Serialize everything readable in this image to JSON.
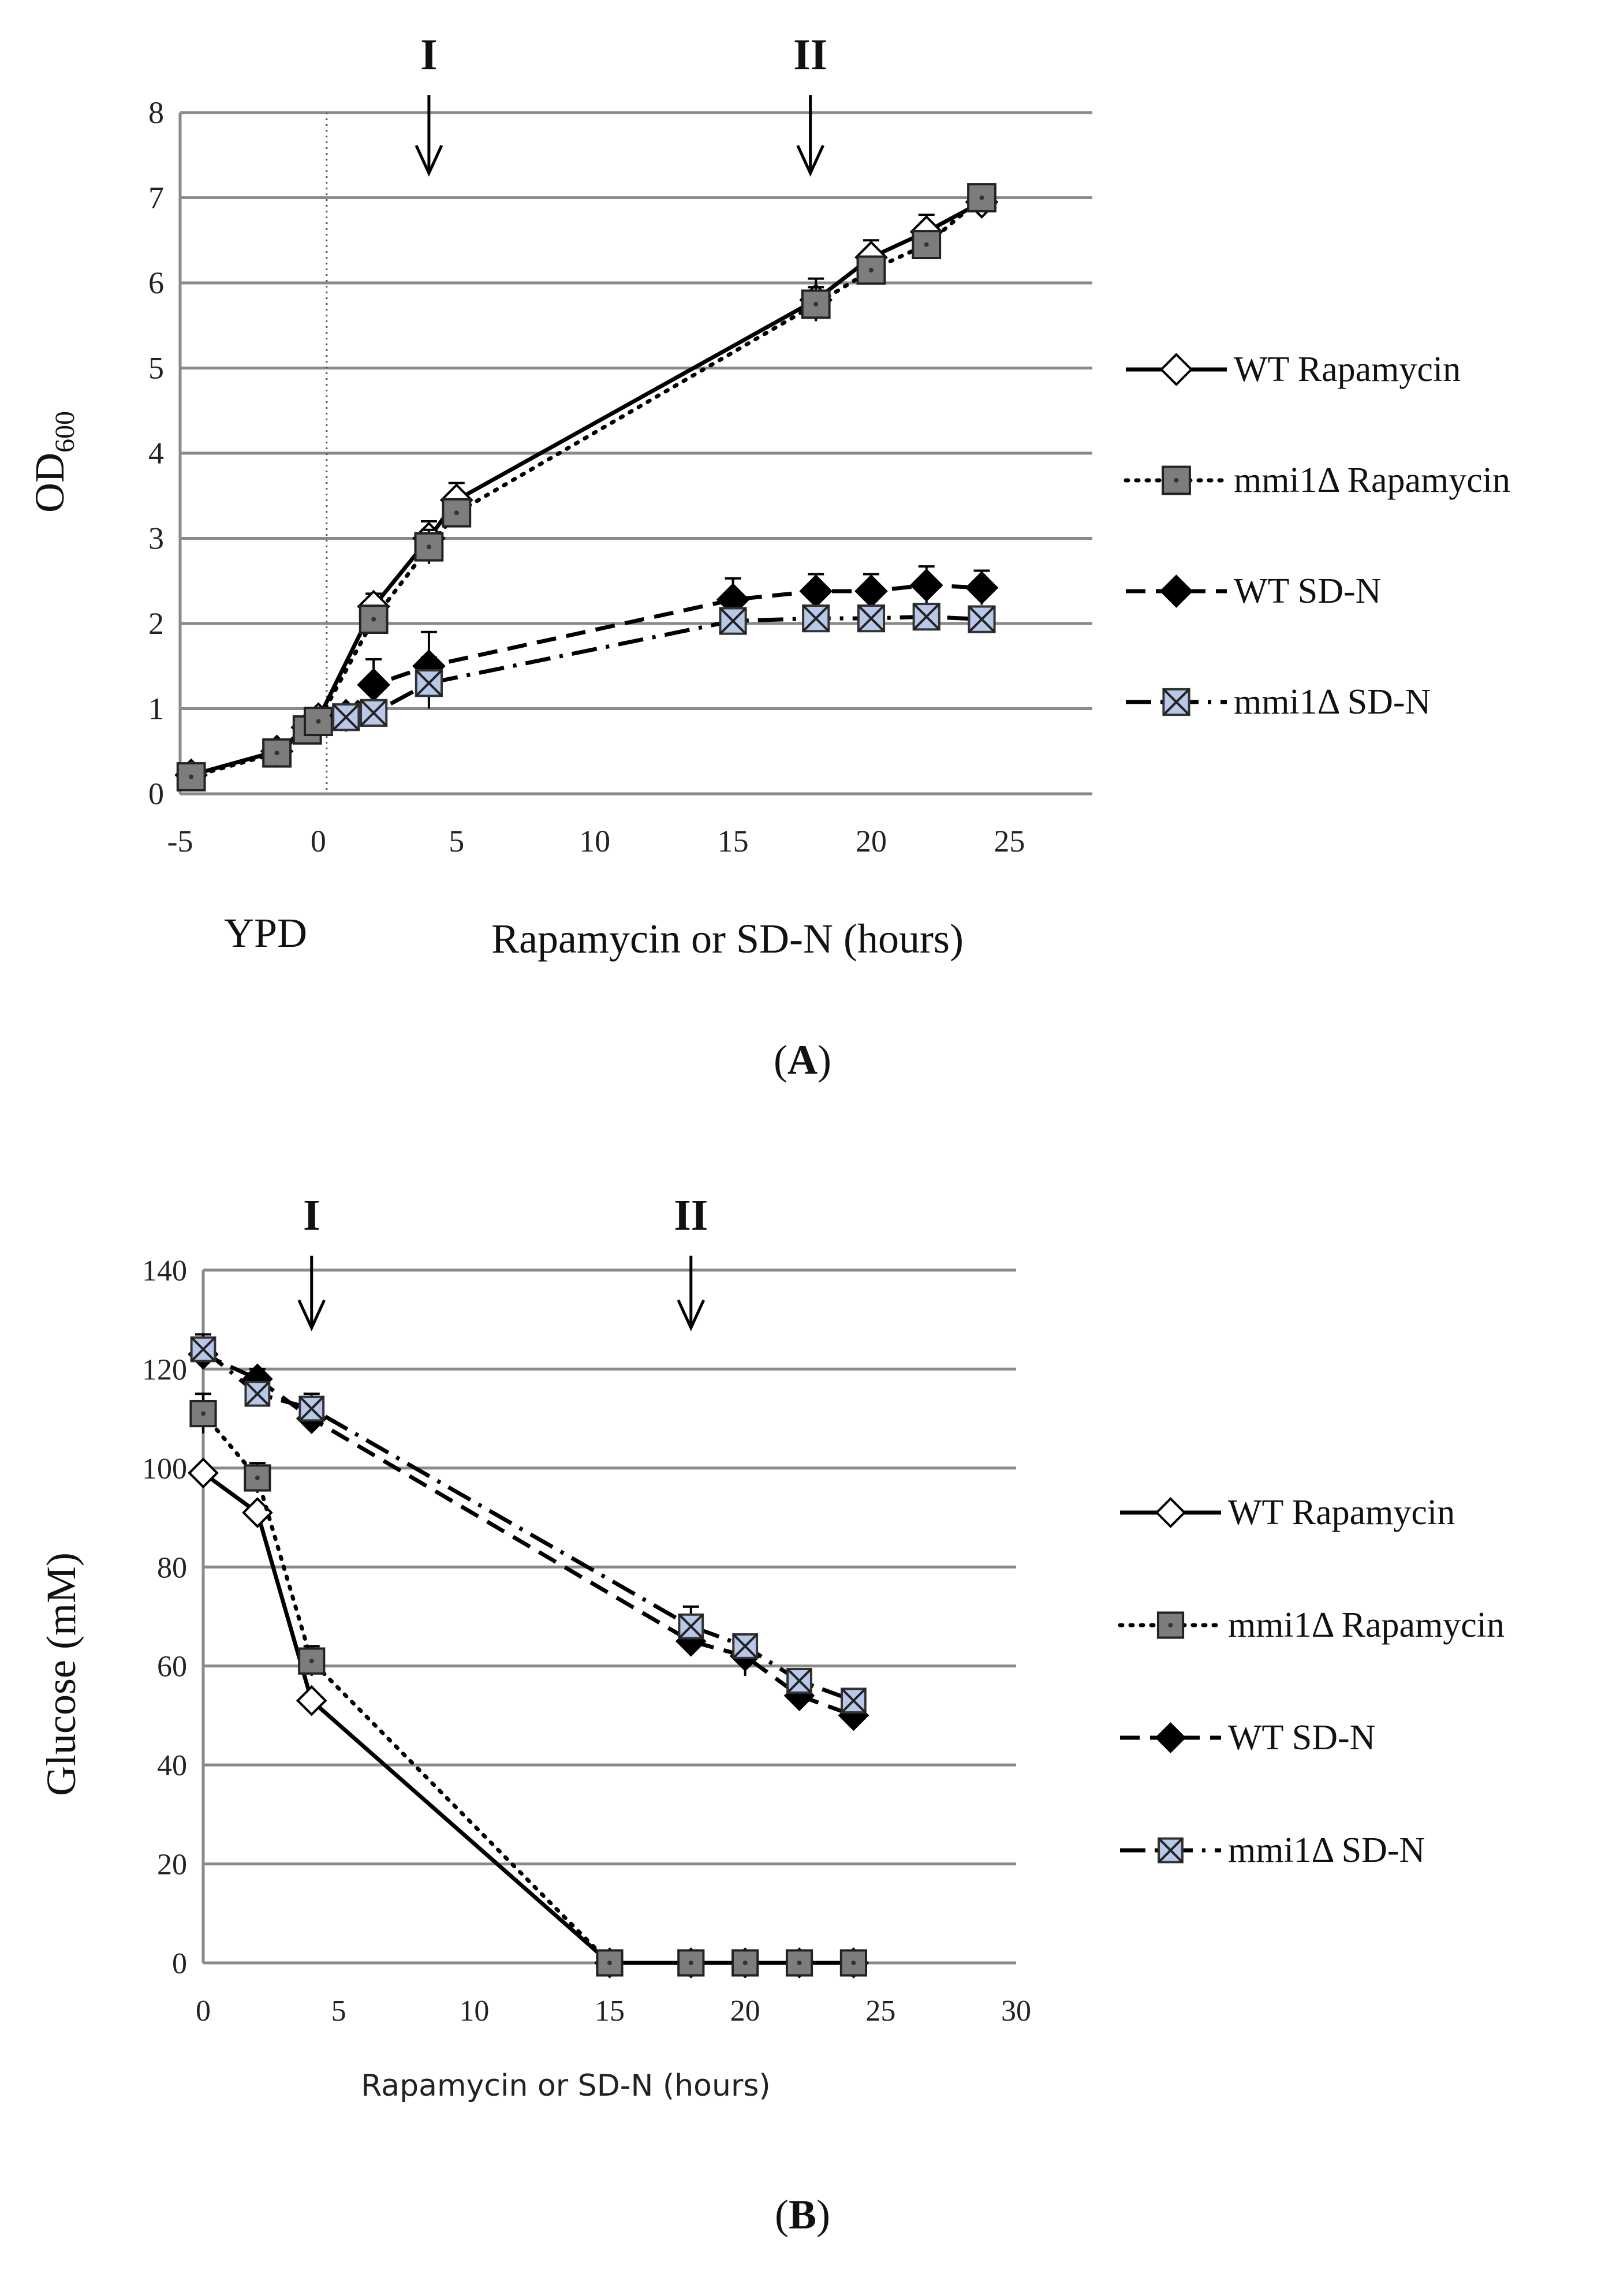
{
  "colors": {
    "grid": "#8a8a8a",
    "axis": "#8a8a8a",
    "line": "#000000",
    "square_marker": "#7d7d7d",
    "cross_marker_fill": "#b8c8e8",
    "diamond_open": "#ffffff",
    "diamond_filled": "#000000"
  },
  "chart_data": [
    {
      "panel": "A",
      "type": "line",
      "ylabel": "OD",
      "ylabel_subscript": "600",
      "xlabel": "Rapamycin or SD-N (hours)",
      "xlabel_left": "YPD",
      "xlim": [
        -5,
        28
      ],
      "ylim": [
        0,
        8
      ],
      "xticks": [
        -5,
        0,
        5,
        10,
        15,
        20,
        25
      ],
      "yticks": [
        0,
        1,
        2,
        3,
        4,
        5,
        6,
        7,
        8
      ],
      "grid": true,
      "vline_at": 0.3,
      "arrows": [
        {
          "label": "I",
          "x": 4
        },
        {
          "label": "II",
          "x": 17.8
        }
      ],
      "legend_position": "right",
      "series": [
        {
          "name": "WT Rapamycin",
          "style": "solid",
          "marker": "diamond-open",
          "x": [
            -4.6,
            -1.5,
            -0.4,
            0,
            2,
            4,
            5,
            18,
            20,
            22,
            24
          ],
          "y": [
            0.22,
            0.5,
            0.78,
            0.88,
            2.2,
            3.0,
            3.45,
            5.8,
            6.3,
            6.6,
            6.95
          ],
          "err": [
            0.05,
            0.05,
            0.08,
            0.1,
            0.15,
            0.2,
            0.2,
            0.25,
            0.2,
            0.2,
            0.1
          ]
        },
        {
          "name": "mmi1Δ Rapamycin",
          "style": "dotted",
          "marker": "square",
          "x": [
            -4.6,
            -1.5,
            -0.4,
            0,
            2,
            4,
            5,
            18,
            20,
            22,
            24
          ],
          "y": [
            0.2,
            0.48,
            0.75,
            0.85,
            2.05,
            2.9,
            3.3,
            5.75,
            6.15,
            6.45,
            7.0
          ],
          "err": [
            0.05,
            0.05,
            0.05,
            0.08,
            0.1,
            0.2,
            0.15,
            0.2,
            0.15,
            0.15,
            0.1
          ]
        },
        {
          "name": "WT SD-N",
          "style": "dashed",
          "marker": "diamond-filled",
          "x": [
            1,
            2,
            4,
            15,
            18,
            20,
            22,
            24
          ],
          "y": [
            0.92,
            1.28,
            1.5,
            2.28,
            2.38,
            2.38,
            2.45,
            2.42
          ],
          "err": [
            0.1,
            0.3,
            0.4,
            0.25,
            0.2,
            0.2,
            0.22,
            0.2
          ]
        },
        {
          "name": "mmi1Δ SD-N",
          "style": "dashdot",
          "marker": "square-cross",
          "x": [
            1,
            2,
            4,
            15,
            18,
            20,
            22,
            24
          ],
          "y": [
            0.9,
            0.95,
            1.3,
            2.03,
            2.06,
            2.06,
            2.08,
            2.05
          ],
          "err": [
            0.08,
            0.1,
            0.3,
            0.1,
            0.1,
            0.1,
            0.1,
            0.1
          ]
        }
      ],
      "caption": "A"
    },
    {
      "panel": "B",
      "type": "line",
      "ylabel": "Glucose (mM)",
      "xlabel": "Rapamycin or SD-N (hours)",
      "xlim": [
        0,
        30
      ],
      "ylim": [
        0,
        140
      ],
      "xticks": [
        0,
        5,
        10,
        15,
        20,
        25,
        30
      ],
      "yticks": [
        0,
        20,
        40,
        60,
        80,
        100,
        120,
        140
      ],
      "grid": true,
      "arrows": [
        {
          "label": "I",
          "x": 4
        },
        {
          "label": "II",
          "x": 18
        }
      ],
      "legend_position": "right",
      "series": [
        {
          "name": "WT Rapamycin",
          "style": "solid",
          "marker": "diamond-open",
          "x": [
            0,
            2,
            4,
            15,
            18,
            20,
            22,
            24
          ],
          "y": [
            99,
            91,
            53,
            0,
            0,
            0,
            0,
            0
          ],
          "err": [
            0,
            0,
            0,
            0,
            0,
            0,
            0,
            0
          ]
        },
        {
          "name": "mmi1Δ Rapamycin",
          "style": "dotted",
          "marker": "square",
          "x": [
            0,
            2,
            4,
            15,
            18,
            20,
            22,
            24
          ],
          "y": [
            111,
            98,
            61,
            0,
            0,
            0,
            0,
            0
          ],
          "err": [
            4,
            3,
            3,
            0,
            0,
            0,
            0,
            0
          ]
        },
        {
          "name": "WT SD-N",
          "style": "dashed",
          "marker": "diamond-filled",
          "x": [
            0,
            2,
            4,
            18,
            20,
            22,
            24
          ],
          "y": [
            123,
            118,
            110,
            65,
            62,
            54,
            50
          ],
          "err": [
            3,
            2,
            2,
            3,
            4,
            2,
            2
          ]
        },
        {
          "name": "mmi1Δ SD-N",
          "style": "dashdot",
          "marker": "square-cross",
          "x": [
            0,
            2,
            4,
            18,
            20,
            22,
            24
          ],
          "y": [
            124,
            115,
            112,
            68,
            64,
            57,
            53
          ],
          "err": [
            3,
            2,
            3,
            4,
            2,
            2,
            2
          ]
        }
      ],
      "caption": "B"
    }
  ]
}
